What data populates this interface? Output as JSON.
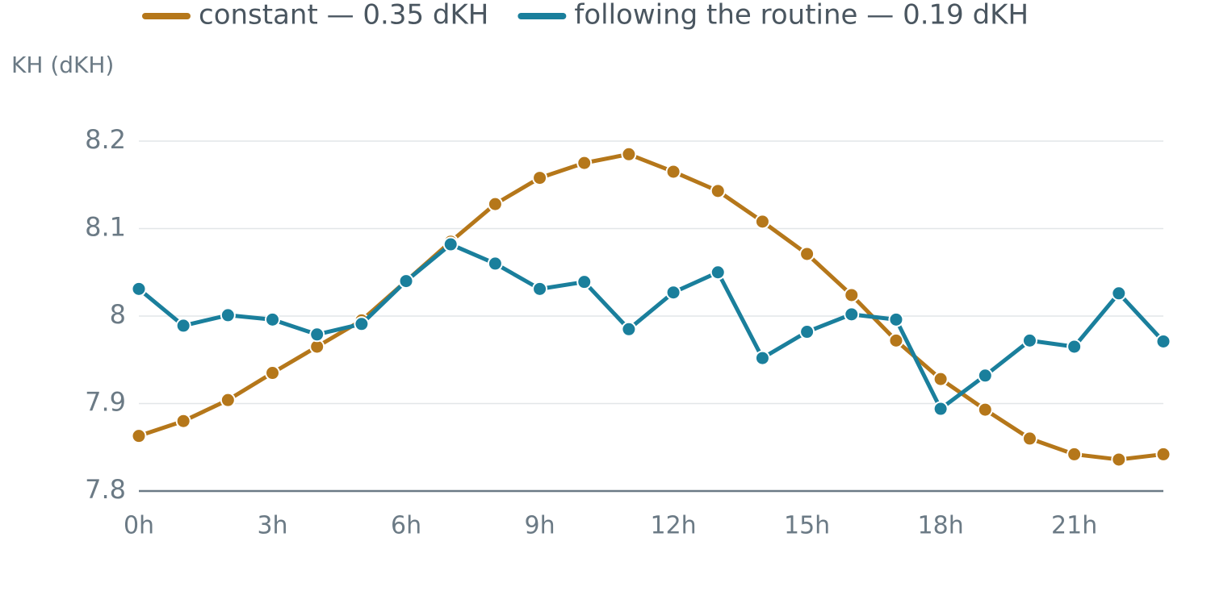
{
  "chart_data": {
    "type": "line",
    "y_axis_label": "KH (dKH)",
    "x": [
      0,
      1,
      2,
      3,
      4,
      5,
      6,
      7,
      8,
      9,
      10,
      11,
      12,
      13,
      14,
      15,
      16,
      17,
      18,
      19,
      20,
      21,
      22,
      23
    ],
    "series": [
      {
        "name": "constant — 0.35 dKH",
        "color": "#b5771a",
        "values": [
          7.863,
          7.88,
          7.904,
          7.935,
          7.965,
          7.995,
          8.04,
          8.085,
          8.128,
          8.158,
          8.175,
          8.185,
          8.165,
          8.143,
          8.108,
          8.071,
          8.024,
          7.972,
          7.928,
          7.893,
          7.86,
          7.842,
          7.836,
          7.842
        ]
      },
      {
        "name": "following the routine — 0.19 dKH",
        "color": "#1a7f9c",
        "values": [
          8.031,
          7.989,
          8.001,
          7.996,
          7.979,
          7.991,
          8.04,
          8.082,
          8.06,
          8.031,
          8.039,
          7.985,
          8.027,
          8.05,
          7.952,
          7.982,
          8.002,
          7.996,
          7.894,
          7.932,
          7.972,
          7.965,
          8.026,
          7.971
        ]
      }
    ],
    "xlim": [
      0,
      23
    ],
    "xticks": [
      {
        "value": 0,
        "label": "0h"
      },
      {
        "value": 3,
        "label": "3h"
      },
      {
        "value": 6,
        "label": "6h"
      },
      {
        "value": 9,
        "label": "9h"
      },
      {
        "value": 12,
        "label": "12h"
      },
      {
        "value": 15,
        "label": "15h"
      },
      {
        "value": 18,
        "label": "18h"
      },
      {
        "value": 21,
        "label": "21h"
      }
    ],
    "ylim": [
      7.8,
      8.2
    ],
    "yticks": [
      7.8,
      7.9,
      8,
      8.1,
      8.2
    ],
    "grid": true
  }
}
